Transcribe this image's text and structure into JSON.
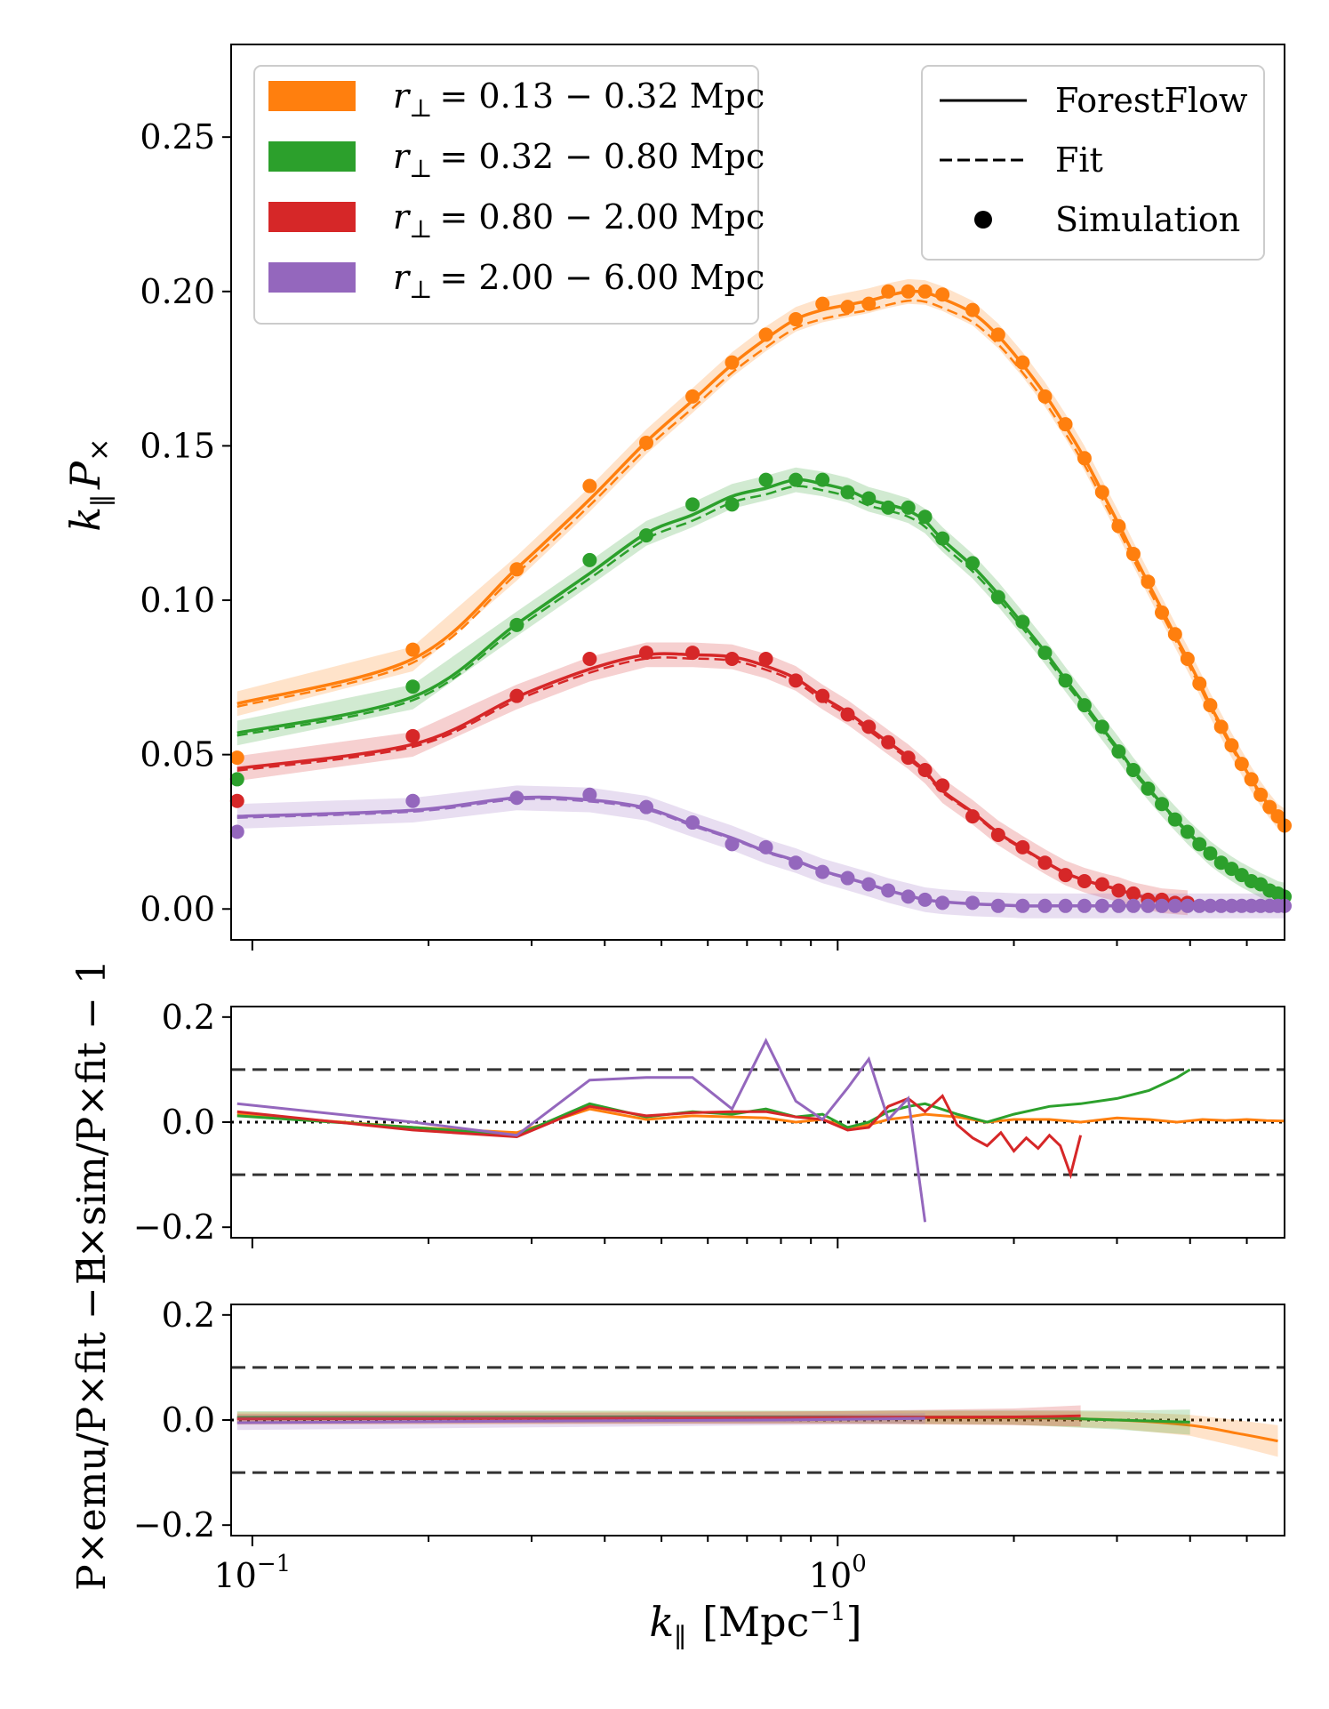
{
  "colors": {
    "orange": "#ff7f0e",
    "green": "#2ca02c",
    "red": "#d62728",
    "purple": "#9467bd",
    "ref": "#333333"
  },
  "legend_bins": {
    "symbol": "r",
    "subscript": "⊥",
    "entries": [
      {
        "range": "= 0.13 − 0.32 Mpc",
        "color": "orange"
      },
      {
        "range": "= 0.32 − 0.80 Mpc",
        "color": "green"
      },
      {
        "range": "= 0.80 − 2.00 Mpc",
        "color": "red"
      },
      {
        "range": "= 2.00 − 6.00 Mpc",
        "color": "purple"
      }
    ]
  },
  "legend_style": {
    "forestflow": "ForestFlow",
    "fit": "Fit",
    "simulation": "Simulation"
  },
  "axis_labels": {
    "x_main": "k",
    "x_sub": "∥",
    "x_unit": "[Mpc",
    "x_unit_exp": "−1",
    "x_unit_close": "]",
    "y_top_k": "k",
    "y_top_sub": "∥",
    "y_top_P": "P",
    "y_top_times": "×",
    "y_mid": "P×sim/P×fit − 1",
    "y_bot": "P×emu/P×fit − 1"
  },
  "chart_data": [
    {
      "id": "top",
      "type": "line",
      "xscale": "log",
      "xlim": [
        0.092,
        5.8
      ],
      "ylim": [
        -0.01,
        0.28
      ],
      "yticks": [
        "0.00",
        "0.05",
        "0.10",
        "0.15",
        "0.20",
        "0.25"
      ],
      "ytick_values": [
        0.0,
        0.05,
        0.1,
        0.15,
        0.2,
        0.25
      ],
      "xticks": [
        "10",
        "10"
      ],
      "xtick_exps": [
        "−1",
        "0"
      ],
      "xtick_values": [
        0.1,
        1.0
      ],
      "series": [
        {
          "name": "r⊥ = 0.13 − 0.32 Mpc",
          "color": "orange",
          "x": [
            0.0942,
            0.188,
            0.283,
            0.377,
            0.471,
            0.565,
            0.66,
            0.754,
            0.848,
            0.942,
            1.04,
            1.13,
            1.22,
            1.32,
            1.41,
            1.51,
            1.7,
            1.88,
            2.07,
            2.26,
            2.45,
            2.64,
            2.83,
            3.02,
            3.2,
            3.39,
            3.58,
            3.77,
            3.96,
            4.15,
            4.33,
            4.52,
            4.71,
            4.9,
            5.09,
            5.28,
            5.47,
            5.65,
            5.8
          ],
          "y": [
            0.049,
            0.084,
            0.11,
            0.137,
            0.151,
            0.166,
            0.177,
            0.186,
            0.191,
            0.196,
            0.195,
            0.196,
            0.2,
            0.2,
            0.2,
            0.199,
            0.194,
            0.186,
            0.177,
            0.166,
            0.157,
            0.146,
            0.135,
            0.124,
            0.115,
            0.106,
            0.096,
            0.089,
            0.081,
            0.073,
            0.066,
            0.059,
            0.053,
            0.047,
            0.042,
            0.037,
            0.033,
            0.03,
            0.027
          ]
        },
        {
          "name": "r⊥ = 0.32 − 0.80 Mpc",
          "color": "green",
          "x": [
            0.0942,
            0.188,
            0.283,
            0.377,
            0.471,
            0.565,
            0.66,
            0.754,
            0.848,
            0.942,
            1.04,
            1.13,
            1.22,
            1.32,
            1.41,
            1.51,
            1.7,
            1.88,
            2.07,
            2.26,
            2.45,
            2.64,
            2.83,
            3.02,
            3.2,
            3.39,
            3.58,
            3.77,
            3.96,
            4.15,
            4.33,
            4.52,
            4.71,
            4.9,
            5.09,
            5.28,
            5.47,
            5.65,
            5.8
          ],
          "y": [
            0.042,
            0.072,
            0.092,
            0.113,
            0.121,
            0.131,
            0.131,
            0.139,
            0.139,
            0.139,
            0.135,
            0.133,
            0.13,
            0.13,
            0.127,
            0.12,
            0.112,
            0.101,
            0.093,
            0.083,
            0.074,
            0.066,
            0.059,
            0.051,
            0.045,
            0.039,
            0.034,
            0.029,
            0.025,
            0.021,
            0.018,
            0.015,
            0.013,
            0.011,
            0.009,
            0.008,
            0.006,
            0.005,
            0.004
          ]
        },
        {
          "name": "r⊥ = 0.80 − 2.00 Mpc",
          "color": "red",
          "x": [
            0.0942,
            0.188,
            0.283,
            0.377,
            0.471,
            0.565,
            0.66,
            0.754,
            0.848,
            0.942,
            1.04,
            1.13,
            1.22,
            1.32,
            1.41,
            1.51,
            1.7,
            1.88,
            2.07,
            2.26,
            2.45,
            2.64,
            2.83,
            3.02,
            3.2,
            3.39,
            3.58,
            3.77,
            3.96
          ],
          "y": [
            0.035,
            0.056,
            0.069,
            0.081,
            0.083,
            0.083,
            0.081,
            0.081,
            0.074,
            0.069,
            0.063,
            0.059,
            0.054,
            0.049,
            0.045,
            0.04,
            0.03,
            0.024,
            0.02,
            0.015,
            0.011,
            0.009,
            0.008,
            0.006,
            0.005,
            0.003,
            0.003,
            0.002,
            0.002
          ]
        },
        {
          "name": "r⊥ = 2.00 − 6.00 Mpc",
          "color": "purple",
          "x": [
            0.0942,
            0.188,
            0.283,
            0.377,
            0.471,
            0.565,
            0.66,
            0.754,
            0.848,
            0.942,
            1.04,
            1.13,
            1.22,
            1.32,
            1.41,
            1.51,
            1.7,
            1.88,
            2.07,
            2.26,
            2.45,
            2.64,
            2.83,
            3.02,
            3.2,
            3.39,
            3.58,
            3.77,
            3.96,
            4.15,
            4.33,
            4.52,
            4.71,
            4.9,
            5.09,
            5.28,
            5.47,
            5.65,
            5.8
          ],
          "y": [
            0.025,
            0.035,
            0.036,
            0.037,
            0.033,
            0.028,
            0.021,
            0.02,
            0.015,
            0.012,
            0.01,
            0.008,
            0.006,
            0.004,
            0.003,
            0.002,
            0.002,
            0.001,
            0.001,
            0.001,
            0.001,
            0.001,
            0.001,
            0.001,
            0.001,
            0.001,
            0.001,
            0.001,
            0.001,
            0.001,
            0.001,
            0.001,
            0.001,
            0.001,
            0.001,
            0.001,
            0.001,
            0.001,
            0.001
          ]
        }
      ]
    },
    {
      "id": "middle",
      "type": "line",
      "xscale": "log",
      "xlim": [
        0.092,
        5.8
      ],
      "ylim": [
        -0.22,
        0.22
      ],
      "yticks": [
        "0.2",
        "0.0",
        "−0.2"
      ],
      "ytick_values": [
        0.2,
        0.0,
        -0.2
      ],
      "reference_lines": [
        0.1,
        0.0,
        -0.1
      ],
      "series": [
        {
          "color": "orange",
          "x": [
            0.0942,
            0.188,
            0.283,
            0.377,
            0.471,
            0.565,
            0.66,
            0.754,
            0.848,
            0.942,
            1.04,
            1.13,
            1.22,
            1.32,
            1.41,
            1.6,
            1.8,
            2.0,
            2.3,
            2.6,
            3.0,
            3.4,
            3.8,
            4.2,
            4.6,
            5.0,
            5.4,
            5.8
          ],
          "y": [
            0.015,
            -0.01,
            -0.02,
            0.025,
            0.005,
            0.012,
            0.01,
            0.008,
            0.0,
            0.005,
            -0.01,
            -0.005,
            0.005,
            0.01,
            0.015,
            0.01,
            0.0,
            0.005,
            0.005,
            0.0,
            0.008,
            0.005,
            0.0,
            0.005,
            0.003,
            0.005,
            0.003,
            0.002
          ]
        },
        {
          "color": "green",
          "x": [
            0.0942,
            0.188,
            0.283,
            0.377,
            0.471,
            0.565,
            0.66,
            0.754,
            0.848,
            0.942,
            1.04,
            1.13,
            1.22,
            1.32,
            1.41,
            1.6,
            1.8,
            2.0,
            2.3,
            2.6,
            3.0,
            3.4,
            3.8,
            4.0
          ],
          "y": [
            0.012,
            -0.01,
            -0.025,
            0.035,
            0.01,
            0.02,
            0.015,
            0.025,
            0.01,
            0.015,
            -0.01,
            0.0,
            0.02,
            0.03,
            0.035,
            0.015,
            0.0,
            0.015,
            0.03,
            0.035,
            0.045,
            0.06,
            0.085,
            0.1
          ]
        },
        {
          "color": "red",
          "x": [
            0.0942,
            0.188,
            0.283,
            0.377,
            0.471,
            0.565,
            0.66,
            0.754,
            0.848,
            0.942,
            1.04,
            1.13,
            1.22,
            1.32,
            1.41,
            1.51,
            1.6,
            1.7,
            1.8,
            1.9,
            2.0,
            2.1,
            2.2,
            2.3,
            2.4,
            2.5,
            2.6
          ],
          "y": [
            0.02,
            -0.015,
            -0.028,
            0.03,
            0.012,
            0.018,
            0.02,
            0.02,
            0.01,
            0.005,
            -0.015,
            -0.01,
            0.03,
            0.045,
            0.02,
            0.05,
            -0.005,
            -0.03,
            -0.045,
            -0.02,
            -0.055,
            -0.03,
            -0.05,
            -0.025,
            -0.045,
            -0.1,
            -0.025
          ]
        },
        {
          "color": "purple",
          "x": [
            0.0942,
            0.188,
            0.283,
            0.377,
            0.471,
            0.565,
            0.66,
            0.754,
            0.848,
            0.942,
            1.04,
            1.13,
            1.22,
            1.32,
            1.41
          ],
          "y": [
            0.035,
            0.0,
            -0.025,
            0.08,
            0.085,
            0.085,
            0.025,
            0.155,
            0.04,
            0.005,
            0.065,
            0.12,
            0.005,
            0.045,
            -0.19
          ]
        }
      ]
    },
    {
      "id": "bottom",
      "type": "area",
      "xscale": "log",
      "xlim": [
        0.092,
        5.8
      ],
      "ylim": [
        -0.22,
        0.22
      ],
      "yticks": [
        "0.2",
        "0.0",
        "−0.2"
      ],
      "ytick_values": [
        0.2,
        0.0,
        -0.2
      ],
      "reference_lines": [
        0.1,
        0.0,
        -0.1
      ],
      "series": [
        {
          "color": "orange",
          "x": [
            0.0942,
            0.3,
            1.0,
            2.0,
            3.0,
            4.0,
            4.8,
            5.65
          ],
          "y": [
            0.003,
            0.004,
            0.005,
            0.004,
            0.0,
            -0.01,
            -0.025,
            -0.04
          ],
          "band": [
            0.012,
            0.012,
            0.012,
            0.013,
            0.016,
            0.02,
            0.025,
            0.03
          ]
        },
        {
          "color": "green",
          "x": [
            0.0942,
            0.3,
            1.0,
            2.0,
            3.0,
            4.0
          ],
          "y": [
            0.005,
            0.006,
            0.006,
            0.005,
            0.0,
            -0.004
          ],
          "band": [
            0.012,
            0.012,
            0.012,
            0.014,
            0.018,
            0.024
          ]
        },
        {
          "color": "red",
          "x": [
            0.0942,
            0.3,
            1.0,
            2.0,
            2.6
          ],
          "y": [
            0.002,
            0.003,
            0.005,
            0.006,
            0.008
          ],
          "band": [
            0.01,
            0.01,
            0.012,
            0.016,
            0.02
          ]
        },
        {
          "color": "purple",
          "x": [
            0.0942,
            0.3,
            0.8,
            1.41
          ],
          "y": [
            -0.005,
            -0.002,
            0.0,
            0.003
          ],
          "band": [
            0.014,
            0.012,
            0.01,
            0.01
          ]
        }
      ]
    }
  ]
}
